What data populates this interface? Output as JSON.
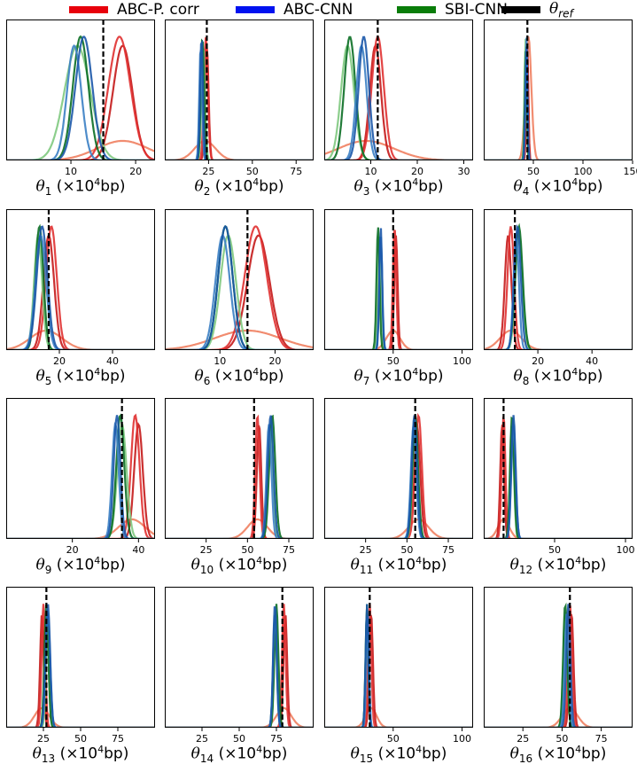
{
  "legend": [
    {
      "label": "ABC-P. corr",
      "color": "#e8000b"
    },
    {
      "label": "ABC-CNN",
      "color": "#0012f0"
    },
    {
      "label": "SBI-CNN",
      "color": "#0a7d0a"
    },
    {
      "label": "θref",
      "color": "#000000"
    }
  ],
  "chart_data": [
    {
      "type": "line",
      "xlabel": "θ1 (×10⁴ bp)",
      "sub": "1",
      "xlim": [
        0,
        23
      ],
      "xticks": [
        10,
        20
      ],
      "ref": 15,
      "series": [
        {
          "c": "#f08060",
          "m": 18,
          "s": 4
        },
        {
          "c": "#c41a1a",
          "m": 18,
          "s": 1.5
        },
        {
          "c": "#e03030",
          "m": 17.5,
          "s": 1.7
        },
        {
          "c": "#7fc97f",
          "m": 11,
          "s": 2
        },
        {
          "c": "#0a6e24",
          "m": 11.5,
          "s": 1.2
        },
        {
          "c": "#3b7fc4",
          "m": 10.5,
          "s": 1.1
        },
        {
          "c": "#1a56a8",
          "m": 12,
          "s": 1.3
        }
      ]
    },
    {
      "type": "line",
      "xlabel": "θ2 (×10⁴ bp)",
      "sub": "2",
      "xlim": [
        0,
        85
      ],
      "xticks": [
        25,
        50,
        75
      ],
      "ref": 24,
      "series": [
        {
          "c": "#f08060",
          "m": 23,
          "s": 6
        },
        {
          "c": "#c41a1a",
          "m": 24,
          "s": 1
        },
        {
          "c": "#e03030",
          "m": 23.5,
          "s": 1.1
        },
        {
          "c": "#7fc97f",
          "m": 22,
          "s": 1
        },
        {
          "c": "#0a6e24",
          "m": 21.5,
          "s": 0.9
        },
        {
          "c": "#3b7fc4",
          "m": 20.5,
          "s": 0.8
        },
        {
          "c": "#1a56a8",
          "m": 21,
          "s": 0.8
        }
      ]
    },
    {
      "type": "line",
      "xlabel": "θ3 (×10⁴ bp)",
      "sub": "3",
      "xlim": [
        0,
        32
      ],
      "xticks": [
        10,
        20,
        30
      ],
      "ref": 11.5,
      "series": [
        {
          "c": "#f08060",
          "m": 9,
          "s": 6
        },
        {
          "c": "#c41a1a",
          "m": 11,
          "s": 1.2
        },
        {
          "c": "#e03030",
          "m": 11.5,
          "s": 1.3
        },
        {
          "c": "#7fc97f",
          "m": 5,
          "s": 1.4
        },
        {
          "c": "#0a6e24",
          "m": 5.5,
          "s": 1.2
        },
        {
          "c": "#3b7fc4",
          "m": 8,
          "s": 1.1
        },
        {
          "c": "#1a56a8",
          "m": 8.5,
          "s": 1.1
        }
      ]
    },
    {
      "type": "line",
      "xlabel": "θ4 (×10⁴ bp)",
      "sub": "4",
      "xlim": [
        0,
        150
      ],
      "xticks": [
        50,
        100,
        150
      ],
      "ref": 44,
      "series": [
        {
          "c": "#f08060",
          "m": 45,
          "s": 3
        },
        {
          "c": "#c41a1a",
          "m": 44,
          "s": 1
        },
        {
          "c": "#7fc97f",
          "m": 42,
          "s": 1
        },
        {
          "c": "#0a6e24",
          "m": 42.5,
          "s": 1
        },
        {
          "c": "#3b7fc4",
          "m": 43,
          "s": 1
        },
        {
          "c": "#1a56a8",
          "m": 43,
          "s": 1
        }
      ]
    },
    {
      "type": "line",
      "xlabel": "θ5 (×10⁴ bp)",
      "sub": "5",
      "xlim": [
        0,
        56
      ],
      "xticks": [
        20,
        40
      ],
      "ref": 16,
      "series": [
        {
          "c": "#f08060",
          "m": 15,
          "s": 6
        },
        {
          "c": "#c41a1a",
          "m": 16,
          "s": 2
        },
        {
          "c": "#e03030",
          "m": 17,
          "s": 2
        },
        {
          "c": "#7fc97f",
          "m": 12,
          "s": 1.5
        },
        {
          "c": "#0a6e24",
          "m": 12.5,
          "s": 1.5
        },
        {
          "c": "#3b7fc4",
          "m": 13,
          "s": 2
        },
        {
          "c": "#1a56a8",
          "m": 13.5,
          "s": 2
        }
      ]
    },
    {
      "type": "line",
      "xlabel": "θ6 (×10⁴ bp)",
      "sub": "6",
      "xlim": [
        0,
        27
      ],
      "xticks": [
        10,
        20
      ],
      "ref": 15,
      "series": [
        {
          "c": "#f08060",
          "m": 15,
          "s": 6
        },
        {
          "c": "#c41a1a",
          "m": 17,
          "s": 2
        },
        {
          "c": "#e03030",
          "m": 16.5,
          "s": 2
        },
        {
          "c": "#7fc97f",
          "m": 11.5,
          "s": 1.4
        },
        {
          "c": "#0a6e24",
          "m": 11,
          "s": 1.3
        },
        {
          "c": "#3b7fc4",
          "m": 10.5,
          "s": 1.3
        },
        {
          "c": "#1a56a8",
          "m": 11,
          "s": 1.3
        }
      ]
    },
    {
      "type": "line",
      "xlabel": "θ7 (×10⁴ bp)",
      "sub": "7",
      "xlim": [
        0,
        108
      ],
      "xticks": [
        50,
        100
      ],
      "ref": 50,
      "series": [
        {
          "c": "#f08060",
          "m": 50,
          "s": 5
        },
        {
          "c": "#c41a1a",
          "m": 52,
          "s": 1.2
        },
        {
          "c": "#e03030",
          "m": 51,
          "s": 1.2
        },
        {
          "c": "#7fc97f",
          "m": 40,
          "s": 1.2
        },
        {
          "c": "#0a6e24",
          "m": 39,
          "s": 1.1
        },
        {
          "c": "#3b7fc4",
          "m": 41,
          "s": 1.1
        },
        {
          "c": "#1a56a8",
          "m": 41,
          "s": 1
        }
      ]
    },
    {
      "type": "line",
      "xlabel": "θ8 (×10⁴ bp)",
      "sub": "8",
      "xlim": [
        0,
        55
      ],
      "xticks": [
        20,
        40
      ],
      "ref": 11.5,
      "series": [
        {
          "c": "#f08060",
          "m": 10,
          "s": 4
        },
        {
          "c": "#c41a1a",
          "m": 9,
          "s": 1.2
        },
        {
          "c": "#e03030",
          "m": 10,
          "s": 1.2
        },
        {
          "c": "#7fc97f",
          "m": 13,
          "s": 1.3
        },
        {
          "c": "#0a6e24",
          "m": 13,
          "s": 1.4
        },
        {
          "c": "#3b7fc4",
          "m": 12,
          "s": 1
        },
        {
          "c": "#1a56a8",
          "m": 12.5,
          "s": 1.2
        }
      ]
    },
    {
      "type": "line",
      "xlabel": "θ9 (×10⁴ bp)",
      "sub": "9",
      "xlim": [
        0,
        45
      ],
      "xticks": [
        20,
        40
      ],
      "ref": 35,
      "series": [
        {
          "c": "#f08060",
          "m": 38,
          "s": 4
        },
        {
          "c": "#c41a1a",
          "m": 40,
          "s": 1.3
        },
        {
          "c": "#e03030",
          "m": 39,
          "s": 1.3
        },
        {
          "c": "#7fc97f",
          "m": 35,
          "s": 1.4
        },
        {
          "c": "#0a6e24",
          "m": 34.5,
          "s": 1.2
        },
        {
          "c": "#3b7fc4",
          "m": 33,
          "s": 1
        },
        {
          "c": "#1a56a8",
          "m": 33.5,
          "s": 1
        }
      ]
    },
    {
      "type": "line",
      "xlabel": "θ10 (×10⁴ bp)",
      "sub": "10",
      "xlim": [
        0,
        90
      ],
      "xticks": [
        25,
        50,
        75
      ],
      "ref": 54,
      "series": [
        {
          "c": "#f08060",
          "m": 56,
          "s": 6
        },
        {
          "c": "#c41a1a",
          "m": 57,
          "s": 1.3
        },
        {
          "c": "#e03030",
          "m": 56,
          "s": 1.3
        },
        {
          "c": "#7fc97f",
          "m": 64,
          "s": 1.5
        },
        {
          "c": "#0a6e24",
          "m": 65,
          "s": 1.8
        },
        {
          "c": "#3b7fc4",
          "m": 63,
          "s": 1.5
        },
        {
          "c": "#1a56a8",
          "m": 64,
          "s": 1.7
        }
      ]
    },
    {
      "type": "line",
      "xlabel": "θ11 (×10⁴ bp)",
      "sub": "11",
      "xlim": [
        0,
        90
      ],
      "xticks": [
        25,
        50,
        75
      ],
      "ref": 55,
      "series": [
        {
          "c": "#f08060",
          "m": 57,
          "s": 6
        },
        {
          "c": "#c41a1a",
          "m": 56,
          "s": 2
        },
        {
          "c": "#e03030",
          "m": 57,
          "s": 2
        },
        {
          "c": "#7fc97f",
          "m": 55,
          "s": 1.6
        },
        {
          "c": "#0a6e24",
          "m": 55,
          "s": 1.7
        },
        {
          "c": "#3b7fc4",
          "m": 54,
          "s": 1.6
        },
        {
          "c": "#1a56a8",
          "m": 54.5,
          "s": 1.6
        }
      ]
    },
    {
      "type": "line",
      "xlabel": "θ12 (×10⁴ bp)",
      "sub": "12",
      "xlim": [
        0,
        105
      ],
      "xticks": [
        50,
        100
      ],
      "ref": 14,
      "series": [
        {
          "c": "#f08060",
          "m": 14,
          "s": 4
        },
        {
          "c": "#c41a1a",
          "m": 13,
          "s": 1.3
        },
        {
          "c": "#e03030",
          "m": 14,
          "s": 1.3
        },
        {
          "c": "#7fc97f",
          "m": 20,
          "s": 1.3
        },
        {
          "c": "#0a6e24",
          "m": 20,
          "s": 1.4
        },
        {
          "c": "#3b7fc4",
          "m": 21,
          "s": 1.5
        },
        {
          "c": "#1a56a8",
          "m": 21,
          "s": 1.5
        }
      ]
    },
    {
      "type": "line",
      "xlabel": "θ13 (×10⁴ bp)",
      "sub": "13",
      "xlim": [
        0,
        100
      ],
      "xticks": [
        25,
        50,
        75
      ],
      "ref": 27,
      "series": [
        {
          "c": "#f08060",
          "m": 24,
          "s": 5
        },
        {
          "c": "#c41a1a",
          "m": 24,
          "s": 1.2
        },
        {
          "c": "#e03030",
          "m": 25,
          "s": 1.2
        },
        {
          "c": "#7fc97f",
          "m": 28,
          "s": 1.2
        },
        {
          "c": "#0a6e24",
          "m": 27,
          "s": 1.3
        },
        {
          "c": "#3b7fc4",
          "m": 28,
          "s": 1.5
        },
        {
          "c": "#1a56a8",
          "m": 28,
          "s": 1.5
        }
      ]
    },
    {
      "type": "line",
      "xlabel": "θ14 (×10⁴ bp)",
      "sub": "14",
      "xlim": [
        0,
        100
      ],
      "xticks": [
        25,
        50,
        75
      ],
      "ref": 79,
      "series": [
        {
          "c": "#f08060",
          "m": 80,
          "s": 5
        },
        {
          "c": "#c41a1a",
          "m": 81,
          "s": 1.2
        },
        {
          "c": "#e03030",
          "m": 80,
          "s": 1.2
        },
        {
          "c": "#7fc97f",
          "m": 74,
          "s": 1.2
        },
        {
          "c": "#0a6e24",
          "m": 75,
          "s": 1.3
        },
        {
          "c": "#3b7fc4",
          "m": 74,
          "s": 1.2
        },
        {
          "c": "#1a56a8",
          "m": 74,
          "s": 1.2
        }
      ]
    },
    {
      "type": "line",
      "xlabel": "θ15 (×10⁴ bp)",
      "sub": "15",
      "xlim": [
        0,
        108
      ],
      "xticks": [
        50,
        100
      ],
      "ref": 33,
      "series": [
        {
          "c": "#f08060",
          "m": 34,
          "s": 4
        },
        {
          "c": "#c41a1a",
          "m": 34,
          "s": 1.3
        },
        {
          "c": "#e03030",
          "m": 33,
          "s": 1.2
        },
        {
          "c": "#7fc97f",
          "m": 31,
          "s": 1
        },
        {
          "c": "#0a6e24",
          "m": 31,
          "s": 1
        },
        {
          "c": "#3b7fc4",
          "m": 31.5,
          "s": 1
        },
        {
          "c": "#1a56a8",
          "m": 31,
          "s": 1
        }
      ]
    },
    {
      "type": "line",
      "xlabel": "θ16 (×10⁴ bp)",
      "sub": "16",
      "xlim": [
        0,
        95
      ],
      "xticks": [
        25,
        50,
        75
      ],
      "ref": 55,
      "series": [
        {
          "c": "#f08060",
          "m": 55,
          "s": 5
        },
        {
          "c": "#c41a1a",
          "m": 56,
          "s": 1.3
        },
        {
          "c": "#e03030",
          "m": 55,
          "s": 1.3
        },
        {
          "c": "#7fc97f",
          "m": 52,
          "s": 1.3
        },
        {
          "c": "#0a6e24",
          "m": 52,
          "s": 1.3
        },
        {
          "c": "#3b7fc4",
          "m": 53,
          "s": 1.3
        },
        {
          "c": "#1a56a8",
          "m": 54,
          "s": 1.3
        }
      ]
    }
  ]
}
